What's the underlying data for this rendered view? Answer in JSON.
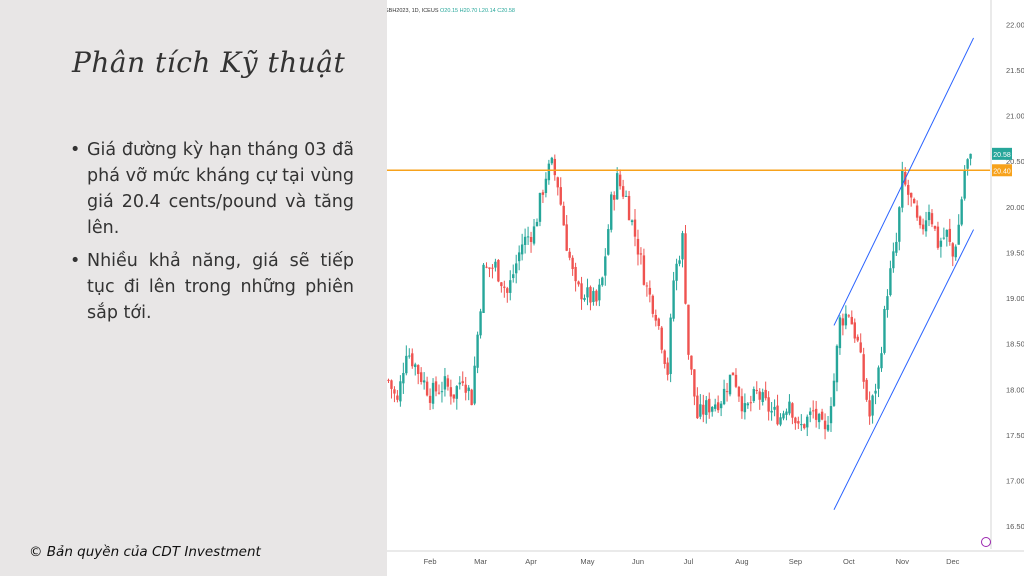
{
  "slide": {
    "title": "Phân tích Kỹ thuật",
    "bullets": [
      "Giá đường kỳ hạn tháng 03 đã phá vỡ mức kháng cự tại vùng giá 20.4 cents/pound và tăng lên.",
      "Nhiều khả năng, giá sẽ tiếp tục đi lên trong những phiên sắp tới."
    ],
    "copyright": "© Bản quyền của CDT Investment"
  },
  "chart_data": {
    "type": "candlestick",
    "header": {
      "symbol": "SBH2023, 1D, ICEUS",
      "open": "O20.15",
      "high": "H20.70",
      "low": "L20.14",
      "close": "C20.58"
    },
    "y_ticks": [
      "22.00",
      "21.50",
      "21.00",
      "20.50",
      "20.00",
      "19.50",
      "19.00",
      "18.50",
      "18.00",
      "17.50",
      "17.00",
      "16.50"
    ],
    "x_labels": [
      "Feb",
      "Mar",
      "Apr",
      "May",
      "Jun",
      "Jul",
      "Aug",
      "Sep",
      "Oct",
      "Nov",
      "Dec"
    ],
    "ylim": [
      16.25,
      22.2
    ],
    "grid": false,
    "price_path": [
      [
        0,
        18.1
      ],
      [
        3,
        17.85
      ],
      [
        6,
        18.45
      ],
      [
        10,
        18.2
      ],
      [
        14,
        17.95
      ],
      [
        19,
        18.05
      ],
      [
        22,
        17.95
      ],
      [
        25,
        18.15
      ],
      [
        28,
        17.9
      ],
      [
        32,
        19.3
      ],
      [
        36,
        19.35
      ],
      [
        40,
        19.05
      ],
      [
        45,
        19.6
      ],
      [
        49,
        19.75
      ],
      [
        53,
        20.35
      ],
      [
        55,
        20.45
      ],
      [
        57,
        20.25
      ],
      [
        60,
        19.6
      ],
      [
        63,
        19.1
      ],
      [
        66,
        19.05
      ],
      [
        70,
        18.95
      ],
      [
        72,
        19.2
      ],
      [
        75,
        20.05
      ],
      [
        77,
        20.3
      ],
      [
        80,
        20.1
      ],
      [
        84,
        19.55
      ],
      [
        87,
        19.1
      ],
      [
        90,
        18.85
      ],
      [
        94,
        18.2
      ],
      [
        96,
        19.2
      ],
      [
        99,
        19.65
      ],
      [
        101,
        18.4
      ],
      [
        104,
        17.7
      ],
      [
        107,
        17.8
      ],
      [
        112,
        17.9
      ],
      [
        116,
        18.2
      ],
      [
        120,
        17.75
      ],
      [
        124,
        17.95
      ],
      [
        129,
        17.75
      ],
      [
        132,
        17.7
      ],
      [
        135,
        17.9
      ],
      [
        138,
        17.55
      ],
      [
        143,
        17.75
      ],
      [
        147,
        17.5
      ],
      [
        150,
        18.1
      ],
      [
        152,
        18.75
      ],
      [
        155,
        18.85
      ],
      [
        158,
        18.5
      ],
      [
        162,
        17.7
      ],
      [
        165,
        18.2
      ],
      [
        168,
        19.1
      ],
      [
        171,
        19.6
      ],
      [
        173,
        20.3
      ],
      [
        176,
        20.05
      ],
      [
        179,
        19.7
      ],
      [
        182,
        20.0
      ],
      [
        185,
        19.6
      ],
      [
        188,
        19.7
      ],
      [
        190,
        19.45
      ],
      [
        192,
        19.8
      ],
      [
        194,
        20.4
      ],
      [
        196,
        20.58
      ]
    ],
    "resistance": {
      "price": 20.4,
      "label": "20.40",
      "color": "#f7a21b"
    },
    "last_price": {
      "price": 20.58,
      "label": "20.58",
      "color": "#26a69a"
    },
    "channel": {
      "color": "#2962ff",
      "upper": [
        [
          150,
          18.7
        ],
        [
          197,
          21.85
        ]
      ],
      "lower": [
        [
          150,
          16.68
        ],
        [
          197,
          19.75
        ]
      ]
    },
    "colors": {
      "up": "#26a69a",
      "down": "#ef5350"
    },
    "watermark_icon": "tradingview-logo-icon"
  }
}
